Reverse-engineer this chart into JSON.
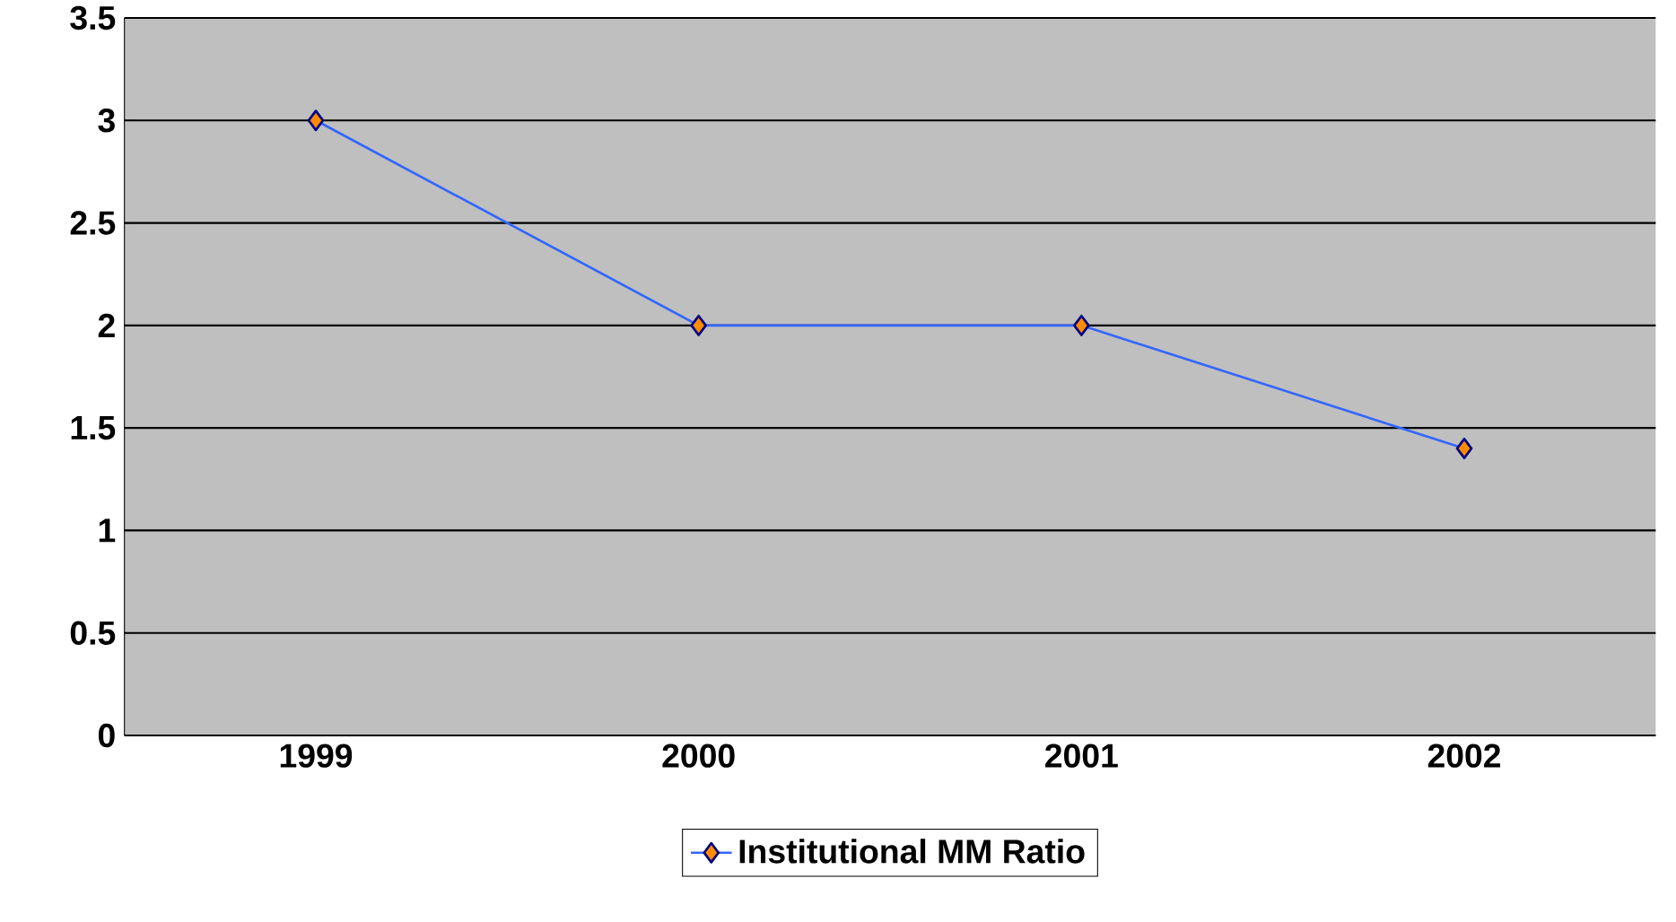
{
  "chart_data": {
    "type": "line",
    "categories": [
      "1999",
      "2000",
      "2001",
      "2002"
    ],
    "series": [
      {
        "name": "Institutional MM Ratio",
        "color": "#3366ff",
        "values": [
          3,
          2,
          2,
          1.4
        ]
      }
    ],
    "ylim": [
      0,
      3.5
    ],
    "yticks": [
      0,
      0.5,
      1,
      1.5,
      2,
      2.5,
      3,
      3.5
    ],
    "grid": "y",
    "legend": "bottom",
    "marker": "diamond",
    "line_style": "solid"
  }
}
